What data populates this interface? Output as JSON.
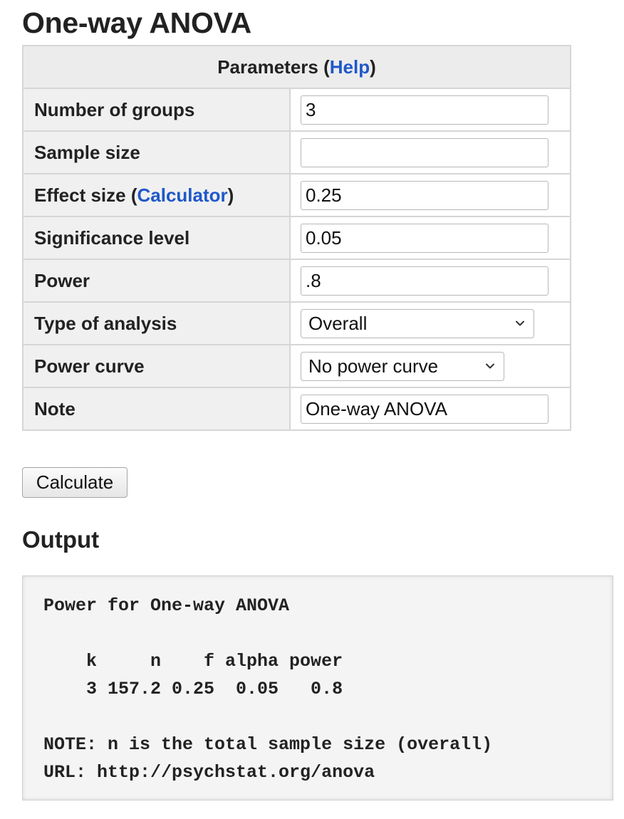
{
  "page": {
    "title": "One-way ANOVA"
  },
  "parameters": {
    "header_prefix": "Parameters (",
    "header_link": "Help",
    "header_suffix": ")",
    "rows": [
      {
        "label": "Number of groups",
        "value": "3"
      },
      {
        "label": "Sample size",
        "value": ""
      },
      {
        "label_prefix": "Effect size (",
        "label_link": "Calculator",
        "label_suffix": ")",
        "value": "0.25"
      },
      {
        "label": "Significance level",
        "value": "0.05"
      },
      {
        "label": "Power",
        "value": ".8"
      },
      {
        "label": "Type of analysis",
        "selected": "Overall"
      },
      {
        "label": "Power curve",
        "selected": "No power curve"
      },
      {
        "label": "Note",
        "value": "One-way ANOVA"
      }
    ]
  },
  "calculate_button": {
    "label": "Calculate"
  },
  "output": {
    "heading": "Output",
    "text": "Power for One-way ANOVA\n\n    k     n    f alpha power\n    3 157.2 0.25  0.05   0.8\n\nNOTE: n is the total sample size (overall)\nURL: http://psychstat.org/anova"
  }
}
